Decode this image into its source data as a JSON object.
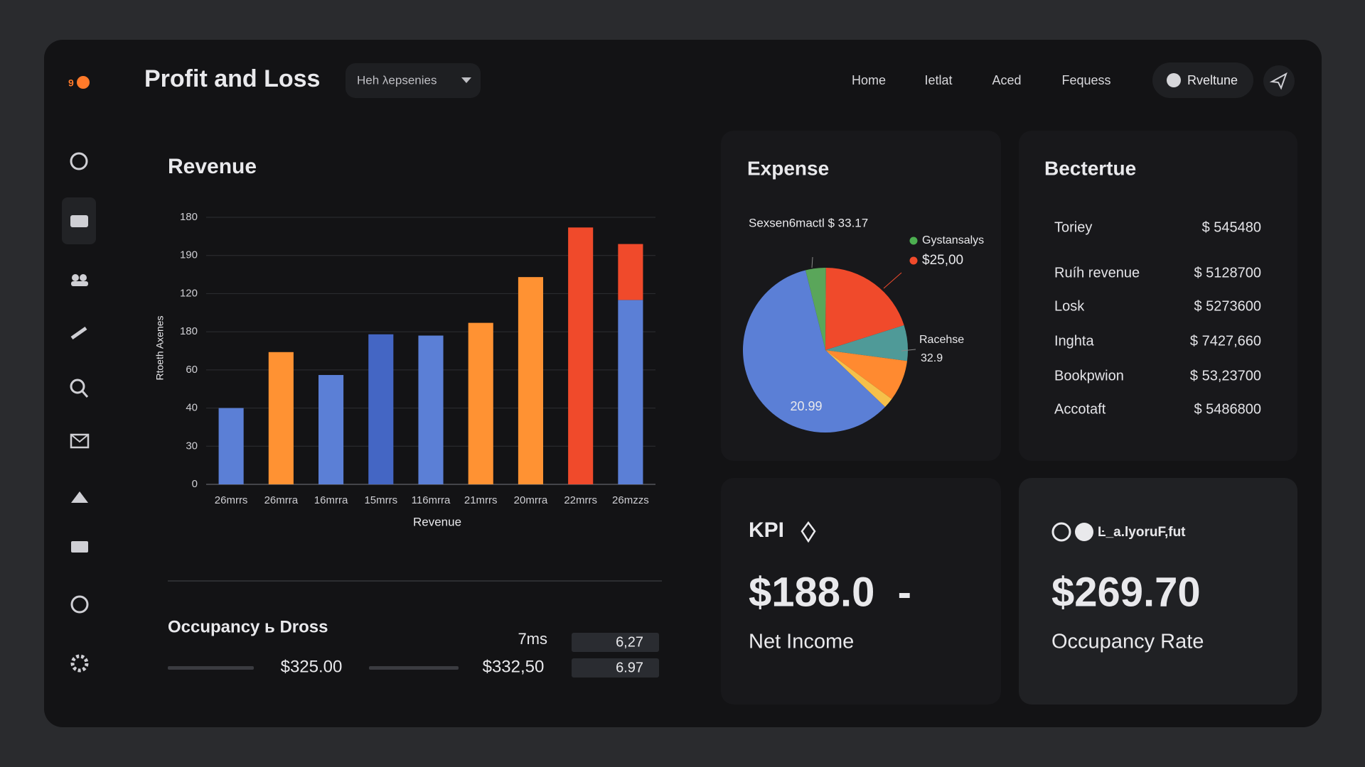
{
  "header": {
    "title": "Profit and Loss",
    "dropdown": "Heh λepsenies",
    "nav": [
      "Home",
      "Ietlat",
      "Aced",
      "Fequess"
    ],
    "button": "Rveltune"
  },
  "revenue_chart": {
    "type": "bar",
    "title": "Revenue",
    "x_label": "Revenue",
    "y_label": "Rtoeth Axenes",
    "categories": [
      "26mrrs",
      "26mrra",
      "16mrra",
      "15mrrs",
      "116mrra",
      "21mrrs",
      "20mrra",
      "22mrrs",
      "26mzzs"
    ],
    "values": [
      60,
      104,
      86,
      118,
      117,
      127,
      163,
      202,
      145
    ],
    "colors": [
      "#5b7fd6",
      "#ff9233",
      "#5b7fd6",
      "#4466c4",
      "#5b7fd6",
      "#ff9233",
      "#ff9233",
      "#f04a2b",
      "#5b7fd6"
    ],
    "top_values": [
      null,
      null,
      null,
      null,
      null,
      null,
      null,
      null,
      44
    ],
    "top_color": "#f04a2b",
    "ylim": [
      0,
      210
    ],
    "yticks": [
      0,
      30,
      {
        "value": 60,
        "label": "40"
      },
      {
        "value": 90,
        "label": "60"
      },
      {
        "value": 120,
        "label": "180"
      },
      {
        "value": 150,
        "label": "120"
      },
      {
        "value": 180,
        "label": "190"
      },
      {
        "value": 210,
        "label": "180"
      }
    ],
    "grid": true
  },
  "occupancy": {
    "title": "Occupancy ь Dross",
    "value_a": "$325.00",
    "value_b": "$332,50",
    "unit": "7ms",
    "box_a": "6,27",
    "box_b": "6.97"
  },
  "expense_chart": {
    "type": "pie",
    "title": "Expense",
    "values": [
      4,
      20,
      7,
      8,
      2,
      59
    ],
    "colors": [
      "#5aa65a",
      "#f04a2b",
      "#4f9a98",
      "#ff8a30",
      "#f6c04a",
      "#5b7fd6"
    ],
    "callouts": [
      "Sexsen6mactl $ 33.17",
      "Racehse",
      "32.9",
      "20.99"
    ],
    "legend": [
      {
        "name": "Gystansalys",
        "color": "#4caf50"
      },
      {
        "name": "$25,00",
        "color": "#f04a2b"
      }
    ]
  },
  "table": {
    "title": "Bectertue",
    "rows": [
      [
        "Toriey",
        "$ 545480"
      ],
      [
        "Ruíh revenue",
        "$ 5128700"
      ],
      [
        "Losk",
        "$ 5273600"
      ],
      [
        "Inghta",
        "$ 7427,660"
      ],
      [
        "Bookpwion",
        "$ 53,23700"
      ],
      [
        "Accotaft",
        "$ 5486800"
      ]
    ]
  },
  "kpi_card": {
    "title": "KPI",
    "value": "$188.0  -",
    "label": "Net Income"
  },
  "rate_card": {
    "title": "Ŀ_a.lyoruF,fut",
    "value": "$269.70",
    "label": "Occupancy Rate"
  }
}
